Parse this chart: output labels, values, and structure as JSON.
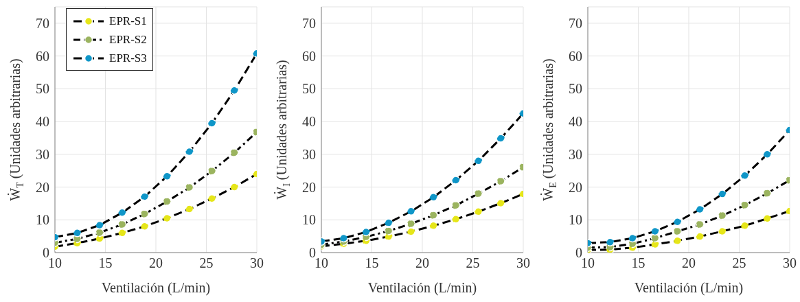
{
  "chart_data": [
    {
      "type": "line",
      "xlabel": "Ventilación (L/min)",
      "ylabel": "Ẇ$_{T}$ (Unidades arbitrarias)",
      "x": [
        10,
        12.22,
        14.44,
        16.67,
        18.89,
        21.11,
        23.33,
        25.56,
        27.78,
        30
      ],
      "xlim": [
        10,
        30
      ],
      "xticks": [
        10,
        15,
        20,
        25,
        30
      ],
      "ylim": [
        0,
        75
      ],
      "yticks": [
        0,
        10,
        20,
        30,
        40,
        50,
        60,
        70
      ],
      "grid": true,
      "legend": "top left",
      "marker": "circle",
      "series": [
        {
          "name": "EPR-S1",
          "color": "#e6e619",
          "line_style": "dashed",
          "values": [
            1.8,
            2.9,
            4.3,
            6.0,
            8.0,
            10.5,
            13.3,
            16.5,
            20.0,
            24.0
          ]
        },
        {
          "name": "EPR-S2",
          "color": "#9bb45f",
          "line_style": "dashdot",
          "values": [
            3.0,
            4.2,
            6.1,
            8.6,
            11.8,
            15.6,
            19.9,
            24.9,
            30.5,
            36.8
          ]
        },
        {
          "name": "EPR-S3",
          "color": "#0f96c8",
          "line_style": "dashed",
          "values": [
            4.7,
            6.0,
            8.4,
            12.2,
            17.1,
            23.3,
            30.8,
            39.5,
            49.5,
            60.8
          ]
        }
      ]
    },
    {
      "type": "line",
      "xlabel": "Ventilación (L/min)",
      "ylabel": "Ẇ$_{I}$ (Unidades arbitrarias)",
      "x": [
        10,
        12.22,
        14.44,
        16.67,
        18.89,
        21.11,
        23.33,
        25.56,
        27.78,
        30
      ],
      "xlim": [
        10,
        30
      ],
      "xticks": [
        10,
        15,
        20,
        25,
        30
      ],
      "ylim": [
        0,
        75
      ],
      "yticks": [
        0,
        10,
        20,
        30,
        40,
        50,
        60,
        70
      ],
      "grid": true,
      "marker": "circle",
      "series": [
        {
          "color": "#e6e619",
          "line_style": "dashed",
          "values": [
            1.9,
            2.7,
            3.6,
            4.9,
            6.4,
            8.2,
            10.2,
            12.5,
            15.1,
            17.9
          ]
        },
        {
          "color": "#9bb45f",
          "line_style": "dashdot",
          "values": [
            2.4,
            3.4,
            4.8,
            6.6,
            8.8,
            11.4,
            14.4,
            18.0,
            21.8,
            26.1
          ]
        },
        {
          "color": "#0f96c8",
          "line_style": "dashed",
          "values": [
            3.4,
            4.4,
            6.3,
            9.1,
            12.6,
            16.9,
            22.1,
            28.0,
            34.9,
            42.5
          ]
        }
      ]
    },
    {
      "type": "line",
      "xlabel": "Ventilación (L/min)",
      "ylabel": "Ẇ$_{E}$ (Unidades arbitrarias)",
      "x": [
        10,
        12.22,
        14.44,
        16.67,
        18.89,
        21.11,
        23.33,
        25.56,
        27.78,
        30
      ],
      "xlim": [
        10,
        30
      ],
      "xticks": [
        10,
        15,
        20,
        25,
        30
      ],
      "ylim": [
        0,
        75
      ],
      "yticks": [
        0,
        10,
        20,
        30,
        40,
        50,
        60,
        70
      ],
      "grid": true,
      "marker": "circle",
      "series": [
        {
          "color": "#e6e619",
          "line_style": "dashed",
          "values": [
            0.8,
            0.9,
            1.5,
            2.5,
            3.6,
            4.9,
            6.5,
            8.2,
            10.4,
            12.7
          ]
        },
        {
          "color": "#9bb45f",
          "line_style": "dashdot",
          "values": [
            1.5,
            1.7,
            2.7,
            4.4,
            6.5,
            8.6,
            11.3,
            14.5,
            18.1,
            22.1
          ]
        },
        {
          "color": "#0f96c8",
          "line_style": "dashed",
          "values": [
            2.9,
            3.2,
            4.4,
            6.5,
            9.4,
            13.2,
            17.9,
            23.5,
            30.0,
            37.4
          ]
        }
      ]
    }
  ]
}
